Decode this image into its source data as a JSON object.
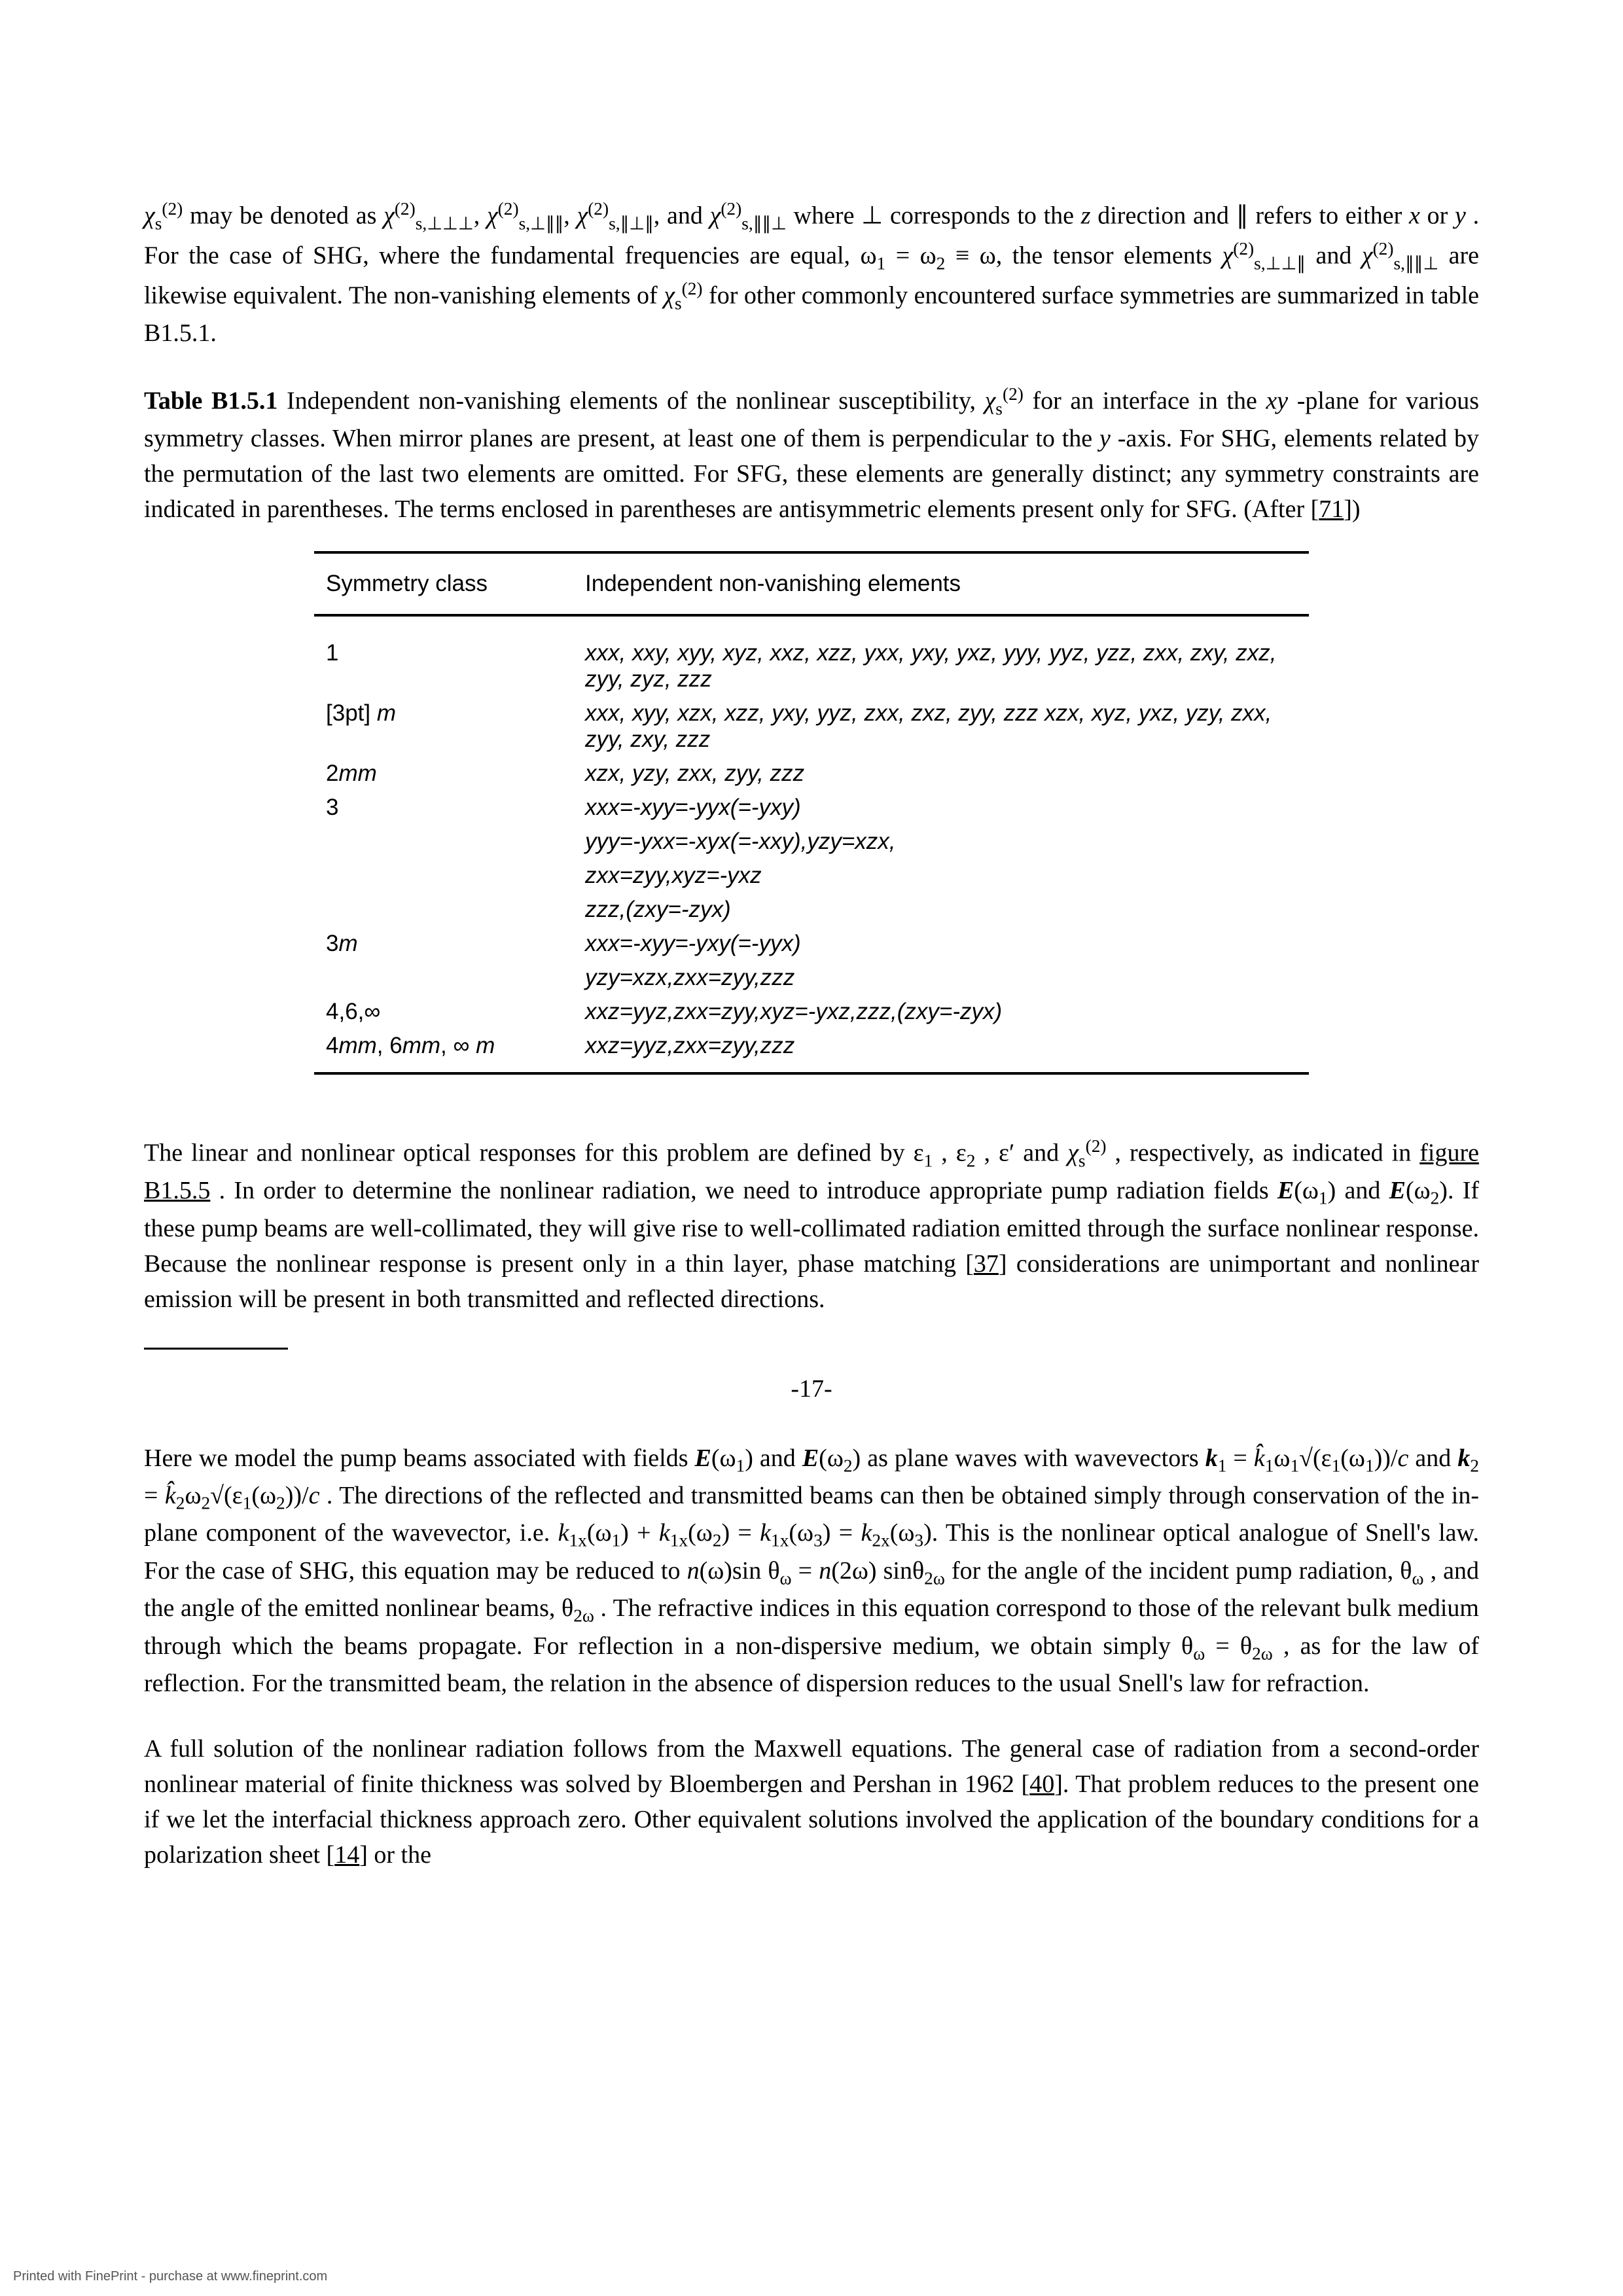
{
  "para_top": "χₛ⁽²⁾ may be denoted as χ⁽²⁾₍s,⊥⊥⊥₎, χ⁽²⁾₍s,⊥∥∥₎, χ⁽²⁾₍s,∥⊥∥₎, and χ⁽²⁾₍s,∥∥⊥₎ where ⊥ corresponds to the z direction and ∥ refers to either x or y. For the case of SHG, where the fundamental frequencies are equal, ω₁ = ω₂ ≡ ω, the tensor elements χ⁽²⁾₍s,⊥⊥∥₎ and χ⁽²⁾₍s,∥∥⊥₎ are likewise equivalent. The non-vanishing elements of χₛ⁽²⁾ for other commonly encountered surface symmetries are summarized in table B1.5.1.",
  "caption_bold": "Table B1.5.1",
  "caption_rest": " Independent non-vanishing elements of the nonlinear susceptibility, χₛ⁽²⁾ for an interface in the xy-plane for various symmetry classes. When mirror planes are present, at least one of them is perpendicular to the y-axis. For SHG, elements related by the permutation of the last two elements are omitted. For SFG, these elements are generally distinct; any symmetry constraints are indicated in parentheses. The terms enclosed in parentheses are antisymmetric elements present only for SFG. (After [71])",
  "table": {
    "head_col1": "Symmetry class",
    "head_col2": "Independent non-vanishing elements",
    "rows": [
      {
        "sym_html": "<span class='upright'>1</span>",
        "el": "xxx, xxy, xyy, xyz, xxz, xzz, yxx, yxy, yxz, yyy, yyz, yzz, zxx, zxy, zxz, zyy, zyz, zzz"
      },
      {
        "sym_html": "<span class='upright'>[3pt]</span> m",
        "el": "xxx, xyy, xzx, xzz, yxy, yyz, zxx, zxz, zyy, zzz xzx, xyz, yxz, yzy, zxx, zyy, zxy, zzz"
      },
      {
        "sym_html": "<span class='upright'>2</span>mm",
        "el": "xzx, yzy, zxx, zyy, zzz"
      },
      {
        "sym_html": "<span class='upright'>3</span>",
        "el": "xxx=-xyy=-yyx(=-yxy)\nyyy=-yxx=-xyx(=-xxy),yzy=xzx,\nzxx=zyy,xyz=-yxz\nzzz,(zxy=-zyx)"
      },
      {
        "sym_html": "<span class='upright'>3</span>m",
        "el": "xxx=-xyy=-yxy(=-yyx)\nyzy=xzx,zxx=zyy,zzz"
      },
      {
        "sym_html": "<span class='upright'>4,6,∞</span>",
        "el": "xxz=yyz,zxx=zyy,xyz=-yxz,zzz,(zxy=-zyx)"
      },
      {
        "sym_html": "<span class='upright'>4</span>mm<span class='upright'>, 6</span>mm<span class='upright'>, ∞ </span>m",
        "el": "xxz=yyz,zxx=zyy,zzz"
      }
    ]
  },
  "para_mid": "The linear and nonlinear optical responses for this problem are defined by ε₁, ε₂, ε′ and χₛ⁽²⁾, respectively, as indicated in figure B1.5.5. In order to determine the nonlinear radiation, we need to introduce appropriate pump radiation fields E(ω₁) and E(ω₂). If these pump beams are well-collimated, they will give rise to well-collimated radiation emitted through the surface nonlinear response. Because the nonlinear response is present only in a thin layer, phase matching [37] considerations are unimportant and nonlinear emission will be present in both transmitted and reflected directions.",
  "page_number": "-17-",
  "para_after1": "Here we model the pump beams associated with fields E(ω₁) and E(ω₂) as plane waves with wavevectors 𝒌₁ = k̂₁ω₁√(ε₁(ω₁))/c and 𝒌₂ = k̂₂ω₂√(ε₁(ω₂))/c. The directions of the reflected and transmitted beams can then be obtained simply through conservation of the in-plane component of the wavevector, i.e. k₁ₓ(ω₁) + k₁ₓ(ω₂) = k₁ₓ(ω₃) = k₂ₓ(ω₃). This is the nonlinear optical analogue of Snell's law. For the case of SHG, this equation may be reduced to n(ω)sin θ_ω = n(2ω) sinθ_{2ω} for the angle of the incident pump radiation, θ_ω, and the angle of the emitted nonlinear beams, θ_{2ω}. The refractive indices in this equation correspond to those of the relevant bulk medium through which the beams propagate. For reflection in a non-dispersive medium, we obtain simply θ_ω = θ_{2ω}, as for the law of reflection. For the transmitted beam, the relation in the absence of dispersion reduces to the usual Snell's law for refraction.",
  "para_after2": "A full solution of the nonlinear radiation follows from the Maxwell equations. The general case of radiation from a second-order nonlinear material of finite thickness was solved by Bloembergen and Pershan in 1962 [40]. That problem reduces to the present one if we let the interfacial thickness approach zero. Other equivalent solutions involved the application of the boundary conditions for a polarization sheet [14] or the",
  "footer": "Printed with FinePrint - purchase at www.fineprint.com"
}
